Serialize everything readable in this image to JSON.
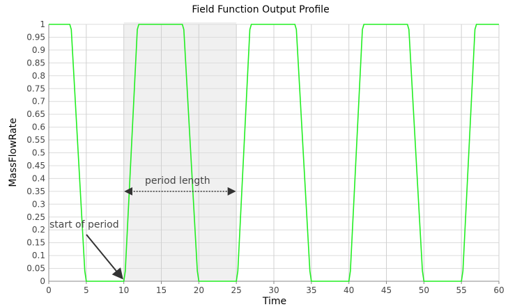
{
  "chart_data": {
    "type": "line",
    "title": "Field Function Output Profile",
    "xlabel": "Time",
    "ylabel": "MassFlowRate",
    "xlim": [
      0,
      60
    ],
    "ylim": [
      0,
      1
    ],
    "xticks": [
      0,
      5,
      10,
      15,
      20,
      25,
      30,
      35,
      40,
      45,
      50,
      55,
      60
    ],
    "yticks": [
      0,
      0.05,
      0.1,
      0.15,
      0.2,
      0.25,
      0.3,
      0.35,
      0.4,
      0.45,
      0.5,
      0.55,
      0.6,
      0.65,
      0.7,
      0.75,
      0.8,
      0.85,
      0.9,
      0.95,
      1
    ],
    "grid": true,
    "series": [
      {
        "color": "#22ee22",
        "x": [
          0,
          2.8,
          3,
          4.8,
          5,
          10,
          10.2,
          11.8,
          12,
          17.8,
          18,
          19.8,
          20,
          25,
          25.2,
          26.8,
          27,
          32.8,
          33,
          34.8,
          35,
          40,
          40.2,
          41.8,
          42,
          47.8,
          48,
          49.8,
          50,
          55,
          55.2,
          56.8,
          57,
          60
        ],
        "y": [
          1,
          1,
          0.98,
          0.04,
          0,
          0,
          0.04,
          0.98,
          1,
          1,
          0.98,
          0.04,
          0,
          0,
          0.04,
          0.98,
          1,
          1,
          0.98,
          0.04,
          0,
          0,
          0.04,
          0.98,
          1,
          1,
          0.98,
          0.04,
          0,
          0,
          0.04,
          0.98,
          1,
          1
        ]
      }
    ],
    "highlight_region": {
      "x": [
        10,
        25
      ],
      "color": "#f0f0f0"
    },
    "annotations": [
      {
        "text": "period length",
        "arrow": "double",
        "x": [
          10,
          25
        ],
        "y": 0.35
      },
      {
        "text": "start of period",
        "arrow_to": [
          10,
          0
        ]
      }
    ]
  }
}
